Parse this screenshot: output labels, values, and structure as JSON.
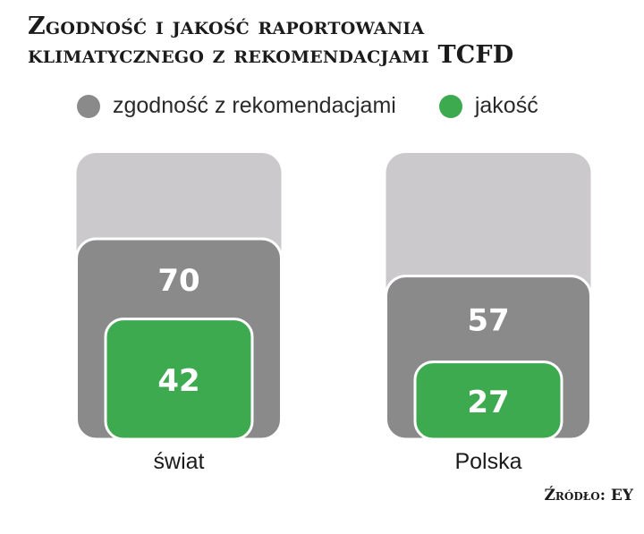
{
  "title": {
    "line1": "Zgodność i jakość raportowania",
    "line2": "klimatycznego z rekomendacjami TCFD"
  },
  "legend": [
    {
      "label": "zgodność z rekomendacjami",
      "color": "#8a8a8a"
    },
    {
      "label": "jakość",
      "color": "#3daa50"
    }
  ],
  "source": "Źródło: EY",
  "colors": {
    "background_bar": "#cbc9cc",
    "compliance": "#8a8a8a",
    "quality": "#3daa50"
  },
  "chart_data": {
    "type": "bar",
    "categories": [
      "świat",
      "Polska"
    ],
    "series": [
      {
        "name": "zgodność z rekomendacjami",
        "values": [
          70,
          57
        ],
        "color": "#8a8a8a"
      },
      {
        "name": "jakość",
        "values": [
          42,
          27
        ],
        "color": "#3daa50"
      }
    ],
    "ylim": [
      0,
      100
    ],
    "legend_position": "top",
    "grid": false
  }
}
